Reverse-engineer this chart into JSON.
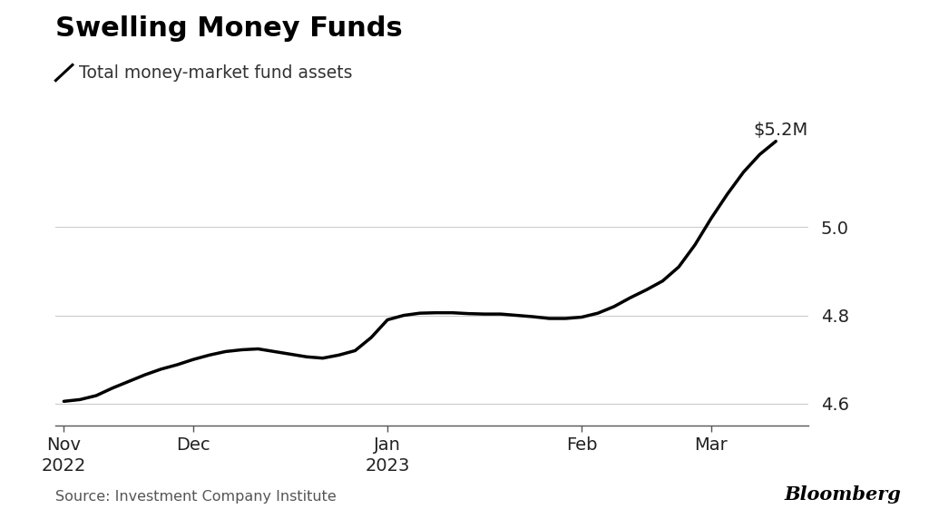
{
  "title": "Swelling Money Funds",
  "legend_label": "Total money-market fund assets",
  "source": "Source: Investment Company Institute",
  "bloomberg": "Bloomberg",
  "y_label_top": "$5.2M",
  "yticks": [
    4.6,
    4.8,
    5.0
  ],
  "ylim": [
    4.55,
    5.28
  ],
  "background_color": "#ffffff",
  "line_color": "#000000",
  "line_width": 2.5,
  "x_tick_positions": [
    0,
    8,
    20,
    32,
    40
  ],
  "x_tick_labels_line1": [
    "Nov",
    "Dec",
    "Jan",
    "Feb",
    "Mar"
  ],
  "x_tick_labels_line2": [
    "2022",
    "",
    "2023",
    "",
    ""
  ],
  "xlim": [
    -0.5,
    46
  ],
  "y_fine": [
    4.605,
    4.609,
    4.618,
    4.635,
    4.65,
    4.665,
    4.678,
    4.688,
    4.7,
    4.71,
    4.718,
    4.722,
    4.724,
    4.718,
    4.712,
    4.706,
    4.703,
    4.71,
    4.72,
    4.75,
    4.79,
    4.8,
    4.805,
    4.806,
    4.806,
    4.804,
    4.803,
    4.803,
    4.8,
    4.797,
    4.793,
    4.793,
    4.796,
    4.805,
    4.82,
    4.84,
    4.858,
    4.878,
    4.91,
    4.96,
    5.02,
    5.075,
    5.125,
    5.165,
    5.195
  ]
}
